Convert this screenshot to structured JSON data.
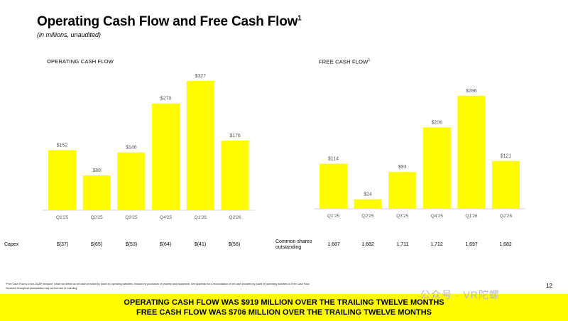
{
  "page": {
    "title": "Operating Cash Flow and Free Cash Flow",
    "title_sup": "1",
    "subtitle": "(in millions, unaudited)",
    "page_number": "12",
    "footnote_line1": "¹Free Cash Flow is a non-GAAP measure, which we define as net cash provided by (used in) operating activities, reduced by purchases of property and equipment. See Appendix for a reconciliation of net cash provided by (used in) operating activities to Free Cash Flow.",
    "footnote_line2": "Numbers throughout presentation may not foot due to rounding.",
    "banner_line1": "OPERATING CASH FLOW WAS $919 MILLION OVER THE TRAILING TWELVE MONTHS",
    "banner_line2": "FREE CASH FLOW WAS $706 MILLION OVER THE TRAILING TWELVE MONTHS",
    "watermark": "公众号 · VR陀螺",
    "bar_color": "#fffc00"
  },
  "chart_data": [
    {
      "type": "bar",
      "title": "OPERATING CASH FLOW",
      "categories": [
        "Q1'25",
        "Q2'25",
        "Q3'25",
        "Q4'25",
        "Q1'26",
        "Q2'26"
      ],
      "values": [
        152,
        88,
        146,
        270,
        327,
        176
      ],
      "data_labels": [
        "$152",
        "$88",
        "$146",
        "$270",
        "$327",
        "$176"
      ],
      "row": {
        "label": "Capex",
        "values": [
          "$(37)",
          "$(65)",
          "$(53)",
          "$(64)",
          "$(41)",
          "$(56)"
        ]
      }
    },
    {
      "type": "bar",
      "title": "FREE CASH FLOW",
      "title_sup": "1",
      "categories": [
        "Q1'25",
        "Q2'25",
        "Q3'25",
        "Q4'25",
        "Q1'26",
        "Q2'26"
      ],
      "values": [
        114,
        24,
        93,
        206,
        286,
        121
      ],
      "data_labels": [
        "$114",
        "$24",
        "$93",
        "$206",
        "$286",
        "$121"
      ],
      "row": {
        "label_line1": "Common shares",
        "label_line2": "outstanding",
        "values": [
          "1,687",
          "1,682",
          "1,711",
          "1,712",
          "1,697",
          "1,682"
        ]
      }
    }
  ]
}
